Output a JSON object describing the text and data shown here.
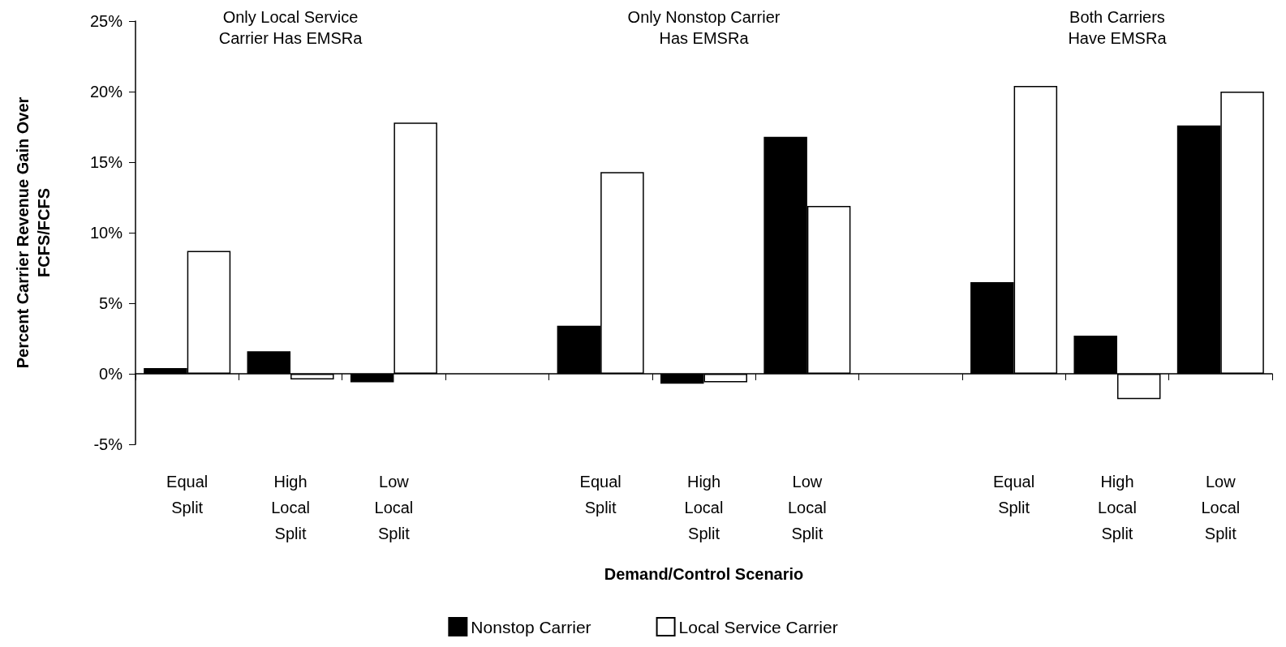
{
  "chart_data": {
    "type": "bar",
    "xlabel": "Demand/Control Scenario",
    "ylabel": "Percent Carrier Revenue Gain Over\nFCFS/FCFS",
    "categories": [
      "Equal Split",
      "High Local Split",
      "Low Local Split",
      null,
      "Equal Split",
      "High Local Split",
      "Low Local Split",
      null,
      "Equal Split",
      "High Local Split",
      "Low Local Split"
    ],
    "series": [
      {
        "name": "Nonstop Carrier",
        "color": "#000000",
        "values": [
          0.4,
          1.6,
          -0.6,
          null,
          3.4,
          -0.7,
          16.8,
          null,
          6.5,
          2.7,
          17.6
        ]
      },
      {
        "name": "Local Service Carrier",
        "color": "#ffffff",
        "values": [
          8.7,
          -0.4,
          17.8,
          null,
          14.3,
          -0.6,
          11.9,
          null,
          20.4,
          -1.8,
          20.0
        ]
      }
    ],
    "ylim": [
      -5,
      25
    ],
    "yticks": [
      {
        "value": -5,
        "label": "-5%"
      },
      {
        "value": 0,
        "label": "0%"
      },
      {
        "value": 5,
        "label": "5%"
      },
      {
        "value": 10,
        "label": "10%"
      },
      {
        "value": 15,
        "label": "15%"
      },
      {
        "value": 20,
        "label": "20%"
      },
      {
        "value": 25,
        "label": "25%"
      }
    ],
    "annotations": [
      "Only Local Service\nCarrier Has EMSRa",
      "Only Nonstop Carrier\nHas EMSRa",
      "Both Carriers\nHave EMSRa"
    ],
    "legend": "bottom"
  }
}
